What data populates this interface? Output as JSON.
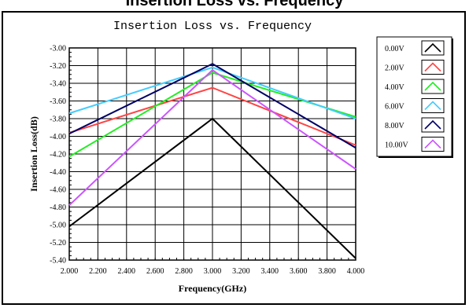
{
  "page_title": "Insertion Loss vs. Frequency",
  "chart_data": {
    "type": "line",
    "title": "Insertion Loss vs. Frequency",
    "xlabel": "Frequency(GHz)",
    "ylabel": "Insertion Loss(dB)",
    "xlim": [
      2.0,
      4.0
    ],
    "ylim": [
      -5.4,
      -3.0
    ],
    "grid": true,
    "legend_position": "right",
    "x": [
      2.0,
      3.0,
      4.0
    ],
    "x_tick_labels": [
      "2.000",
      "2.200",
      "2.400",
      "2.600",
      "2.800",
      "3.000",
      "3.200",
      "3.400",
      "3.600",
      "3.800",
      "4.000"
    ],
    "y_tick_labels": [
      "-3.00",
      "-3.20",
      "-3.40",
      "-3.60",
      "-3.80",
      "-4.00",
      "-4.20",
      "-4.40",
      "-4.60",
      "-4.80",
      "-5.00",
      "-5.20",
      "-5.40"
    ],
    "series": [
      {
        "name": "0.00V",
        "color": "#000000",
        "values": [
          -5.02,
          -3.8,
          -5.38
        ]
      },
      {
        "name": "2.00V",
        "color": "#ff4444",
        "values": [
          -3.96,
          -3.45,
          -4.1
        ]
      },
      {
        "name": "4.00V",
        "color": "#22ee22",
        "values": [
          -4.23,
          -3.28,
          -3.78
        ]
      },
      {
        "name": "6.00V",
        "color": "#44ccff",
        "values": [
          -3.74,
          -3.22,
          -3.8
        ]
      },
      {
        "name": "8.00V",
        "color": "#000066",
        "values": [
          -3.97,
          -3.18,
          -4.13
        ]
      },
      {
        "name": "10.00V",
        "color": "#cc55ff",
        "values": [
          -4.78,
          -3.25,
          -4.37
        ]
      }
    ]
  }
}
